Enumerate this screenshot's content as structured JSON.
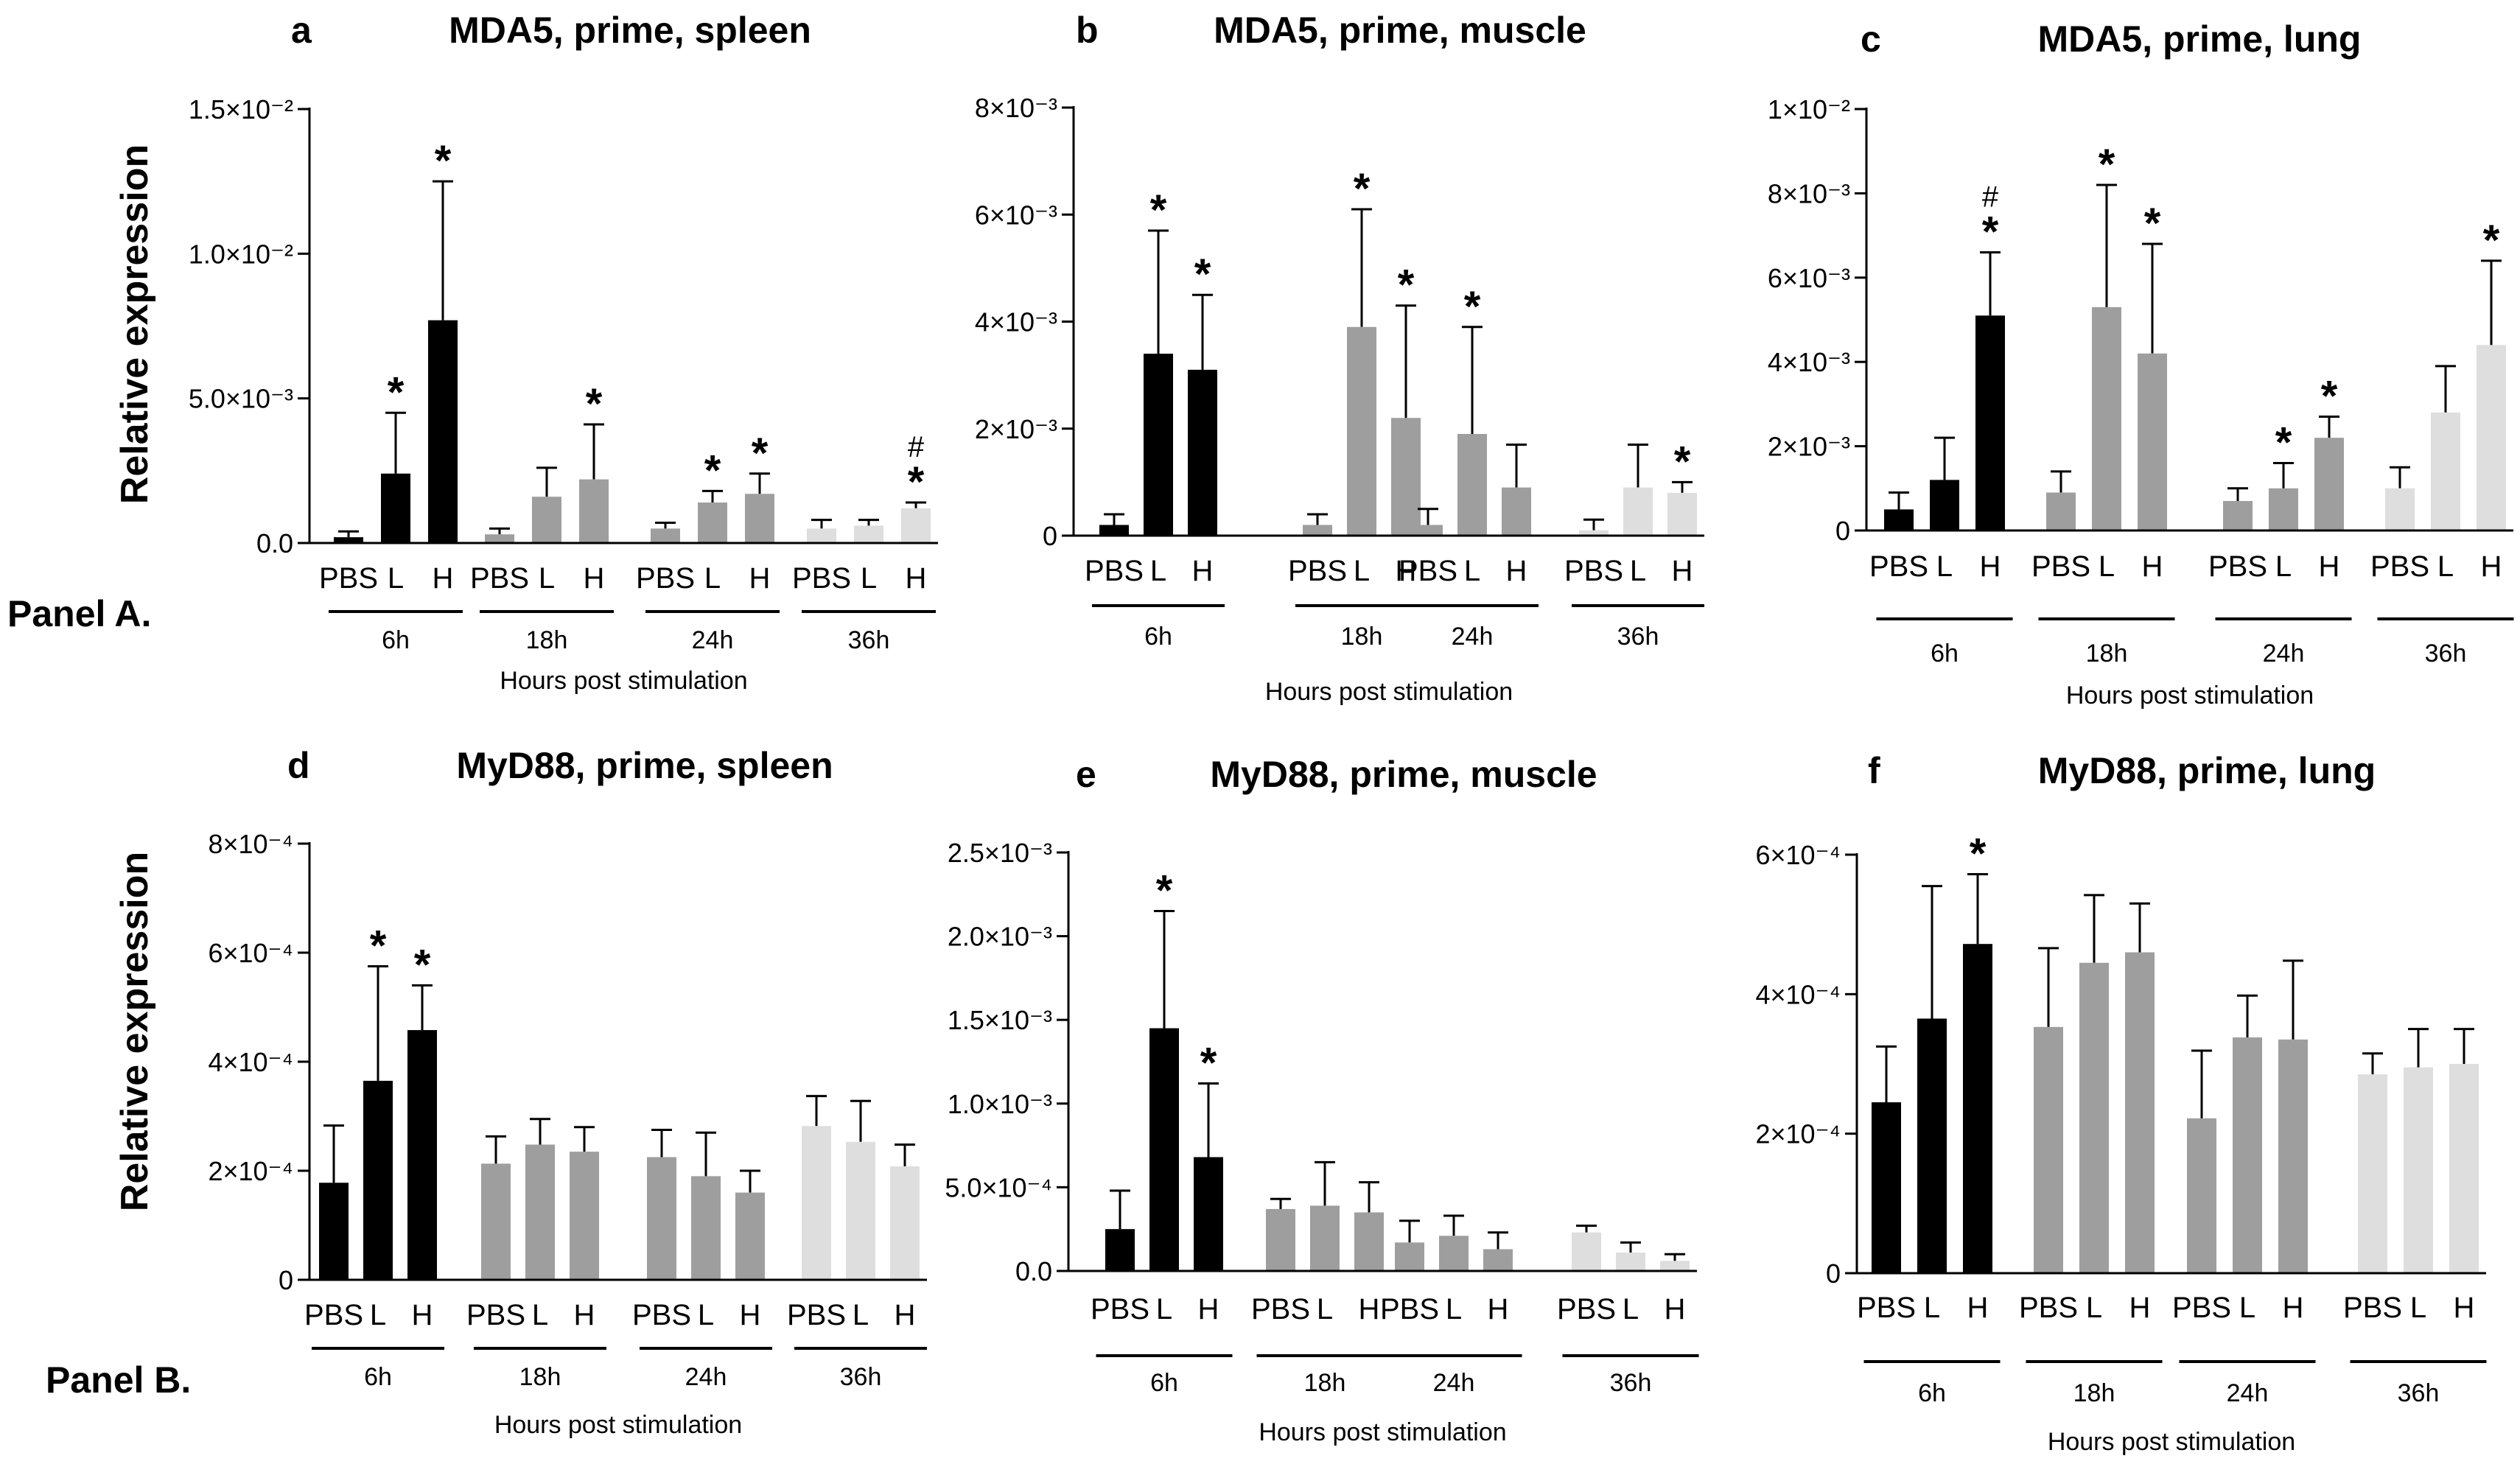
{
  "row_labels": {
    "panel_a": "Panel A.",
    "panel_b": "Panel B."
  },
  "chart_data": [
    {
      "type": "bar",
      "letter": "a",
      "title": "MDA5, prime, spleen",
      "ylabel": "Relative expression",
      "xlabel": "Hours post stimulation",
      "groups": [
        "6h",
        "18h",
        "24h",
        "36h"
      ],
      "categories": [
        "PBS",
        "L",
        "H"
      ],
      "ylim": [
        0,
        0.015
      ],
      "y_ticks": [
        {
          "v": 0,
          "label": "0.0"
        },
        {
          "v": 0.005,
          "label": "5.0×10⁻³"
        },
        {
          "v": 0.01,
          "label": "1.0×10⁻²"
        },
        {
          "v": 0.015,
          "label": "1.5×10⁻²"
        }
      ],
      "colors": [
        "#000000",
        "#9e9e9e",
        "#9e9e9e",
        "#dedede"
      ],
      "values": [
        [
          0.0002,
          0.0024,
          0.0077
        ],
        [
          0.0003,
          0.0016,
          0.0022
        ],
        [
          0.0005,
          0.0014,
          0.0017
        ],
        [
          0.0005,
          0.0006,
          0.0012
        ]
      ],
      "errors": [
        [
          0.0002,
          0.0021,
          0.0048
        ],
        [
          0.0002,
          0.001,
          0.0019
        ],
        [
          0.0002,
          0.0004,
          0.0007
        ],
        [
          0.0003,
          0.0002,
          0.0002
        ]
      ],
      "marks": [
        {
          "g": 0,
          "c": 1,
          "text": "*"
        },
        {
          "g": 0,
          "c": 2,
          "text": "*"
        },
        {
          "g": 1,
          "c": 2,
          "text": "*"
        },
        {
          "g": 2,
          "c": 1,
          "text": "*"
        },
        {
          "g": 2,
          "c": 2,
          "text": "*"
        },
        {
          "g": 3,
          "c": 2,
          "text": "*",
          "hash": "#"
        }
      ]
    },
    {
      "type": "bar",
      "letter": "b",
      "title": "MDA5, prime, muscle",
      "xlabel": "Hours post stimulation",
      "groups": [
        "6h",
        "18h",
        "24h",
        "36h"
      ],
      "categories": [
        "PBS",
        "L",
        "H"
      ],
      "ylim": [
        0,
        0.008
      ],
      "y_ticks": [
        {
          "v": 0,
          "label": "0"
        },
        {
          "v": 0.002,
          "label": "2×10⁻³"
        },
        {
          "v": 0.004,
          "label": "4×10⁻³"
        },
        {
          "v": 0.006,
          "label": "6×10⁻³"
        },
        {
          "v": 0.008,
          "label": "8×10⁻³"
        }
      ],
      "colors": [
        "#000000",
        "#9e9e9e",
        "#9e9e9e",
        "#dedede"
      ],
      "values": [
        [
          0.0002,
          0.0034,
          0.0031
        ],
        [
          0.0002,
          0.0039,
          0.0022
        ],
        [
          0.0002,
          0.0019,
          0.0009
        ],
        [
          0.0001,
          0.0009,
          0.0008
        ]
      ],
      "errors": [
        [
          0.0002,
          0.0023,
          0.0014
        ],
        [
          0.0002,
          0.0022,
          0.0021
        ],
        [
          0.0003,
          0.002,
          0.0008
        ],
        [
          0.0002,
          0.0008,
          0.0002
        ]
      ],
      "marks": [
        {
          "g": 0,
          "c": 1,
          "text": "*"
        },
        {
          "g": 0,
          "c": 2,
          "text": "*"
        },
        {
          "g": 1,
          "c": 1,
          "text": "*"
        },
        {
          "g": 1,
          "c": 2,
          "text": "*"
        },
        {
          "g": 2,
          "c": 1,
          "text": "*"
        },
        {
          "g": 3,
          "c": 2,
          "text": "*"
        }
      ]
    },
    {
      "type": "bar",
      "letter": "c",
      "title": "MDA5, prime, lung",
      "xlabel": "Hours post stimulation",
      "groups": [
        "6h",
        "18h",
        "24h",
        "36h"
      ],
      "categories": [
        "PBS",
        "L",
        "H"
      ],
      "ylim": [
        0,
        0.01
      ],
      "y_ticks": [
        {
          "v": 0,
          "label": "0"
        },
        {
          "v": 0.002,
          "label": "2×10⁻³"
        },
        {
          "v": 0.004,
          "label": "4×10⁻³"
        },
        {
          "v": 0.006,
          "label": "6×10⁻³"
        },
        {
          "v": 0.008,
          "label": "8×10⁻³"
        },
        {
          "v": 0.01,
          "label": "1×10⁻²"
        }
      ],
      "colors": [
        "#000000",
        "#9e9e9e",
        "#9e9e9e",
        "#dedede"
      ],
      "values": [
        [
          0.0005,
          0.0012,
          0.0051
        ],
        [
          0.0009,
          0.0053,
          0.0042
        ],
        [
          0.0007,
          0.001,
          0.0022
        ],
        [
          0.001,
          0.0028,
          0.0044
        ]
      ],
      "errors": [
        [
          0.0004,
          0.001,
          0.0015
        ],
        [
          0.0005,
          0.0029,
          0.0026
        ],
        [
          0.0003,
          0.0006,
          0.0005
        ],
        [
          0.0005,
          0.0011,
          0.002
        ]
      ],
      "marks": [
        {
          "g": 0,
          "c": 2,
          "text": "*",
          "hash": "#"
        },
        {
          "g": 1,
          "c": 1,
          "text": "*"
        },
        {
          "g": 1,
          "c": 2,
          "text": "*"
        },
        {
          "g": 2,
          "c": 1,
          "text": "*"
        },
        {
          "g": 2,
          "c": 2,
          "text": "*"
        },
        {
          "g": 3,
          "c": 2,
          "text": "*"
        }
      ]
    },
    {
      "type": "bar",
      "letter": "d",
      "title": "MyD88, prime, spleen",
      "ylabel": "Relative expression",
      "xlabel": "Hours post stimulation",
      "groups": [
        "6h",
        "18h",
        "24h",
        "36h"
      ],
      "categories": [
        "PBS",
        "L",
        "H"
      ],
      "ylim": [
        0,
        0.0008
      ],
      "y_ticks": [
        {
          "v": 0,
          "label": "0"
        },
        {
          "v": 0.0002,
          "label": "2×10⁻⁴"
        },
        {
          "v": 0.0004,
          "label": "4×10⁻⁴"
        },
        {
          "v": 0.0006,
          "label": "6×10⁻⁴"
        },
        {
          "v": 0.0008,
          "label": "8×10⁻⁴"
        }
      ],
      "colors": [
        "#000000",
        "#9e9e9e",
        "#9e9e9e",
        "#dedede"
      ],
      "values": [
        [
          0.000178,
          0.000365,
          0.000458
        ],
        [
          0.000213,
          0.000248,
          0.000235
        ],
        [
          0.000225,
          0.00019,
          0.00016
        ],
        [
          0.000282,
          0.000253,
          0.000208
        ]
      ],
      "errors": [
        [
          0.000105,
          0.00021,
          8.2e-05
        ],
        [
          5e-05,
          4.7e-05,
          4.5e-05
        ],
        [
          5e-05,
          8e-05,
          4e-05
        ],
        [
          5.5e-05,
          7.5e-05,
          4e-05
        ]
      ],
      "marks": [
        {
          "g": 0,
          "c": 1,
          "text": "*"
        },
        {
          "g": 0,
          "c": 2,
          "text": "*"
        }
      ]
    },
    {
      "type": "bar",
      "letter": "e",
      "title": "MyD88, prime, muscle",
      "xlabel": "Hours post stimulation",
      "groups": [
        "6h",
        "18h",
        "24h",
        "36h"
      ],
      "categories": [
        "PBS",
        "L",
        "H"
      ],
      "ylim": [
        0,
        0.0025
      ],
      "y_ticks": [
        {
          "v": 0,
          "label": "0.0"
        },
        {
          "v": 0.0005,
          "label": "5.0×10⁻⁴"
        },
        {
          "v": 0.001,
          "label": "1.0×10⁻³"
        },
        {
          "v": 0.0015,
          "label": "1.5×10⁻³"
        },
        {
          "v": 0.002,
          "label": "2.0×10⁻³"
        },
        {
          "v": 0.0025,
          "label": "2.5×10⁻³"
        }
      ],
      "colors": [
        "#000000",
        "#9e9e9e",
        "#9e9e9e",
        "#dedede"
      ],
      "values": [
        [
          0.00025,
          0.00145,
          0.00068
        ],
        [
          0.00037,
          0.00039,
          0.00035
        ],
        [
          0.00017,
          0.00021,
          0.00013
        ],
        [
          0.00023,
          0.00011,
          6e-05
        ]
      ],
      "errors": [
        [
          0.00023,
          0.0007,
          0.00044
        ],
        [
          6e-05,
          0.00026,
          0.00018
        ],
        [
          0.00013,
          0.00012,
          0.0001
        ],
        [
          4e-05,
          6e-05,
          4e-05
        ]
      ],
      "marks": [
        {
          "g": 0,
          "c": 1,
          "text": "*"
        },
        {
          "g": 0,
          "c": 2,
          "text": "*"
        }
      ]
    },
    {
      "type": "bar",
      "letter": "f",
      "title": "MyD88, prime, lung",
      "xlabel": "Hours post stimulation",
      "groups": [
        "6h",
        "18h",
        "24h",
        "36h"
      ],
      "categories": [
        "PBS",
        "L",
        "H"
      ],
      "ylim": [
        0,
        0.0006
      ],
      "y_ticks": [
        {
          "v": 0,
          "label": "0"
        },
        {
          "v": 0.0002,
          "label": "2×10⁻⁴"
        },
        {
          "v": 0.0004,
          "label": "4×10⁻⁴"
        },
        {
          "v": 0.0006,
          "label": "6×10⁻⁴"
        }
      ],
      "colors": [
        "#000000",
        "#9e9e9e",
        "#9e9e9e",
        "#dedede"
      ],
      "values": [
        [
          0.000245,
          0.000365,
          0.000472
        ],
        [
          0.000353,
          0.000445,
          0.00046
        ],
        [
          0.000222,
          0.000338,
          0.000335
        ],
        [
          0.000285,
          0.000295,
          0.0003
        ]
      ],
      "errors": [
        [
          8e-05,
          0.00019,
          0.0001
        ],
        [
          0.000113,
          9.7e-05,
          7e-05
        ],
        [
          9.7e-05,
          6e-05,
          0.000113
        ],
        [
          3e-05,
          5.5e-05,
          5e-05
        ]
      ],
      "marks": [
        {
          "g": 0,
          "c": 2,
          "text": "*"
        }
      ]
    }
  ]
}
